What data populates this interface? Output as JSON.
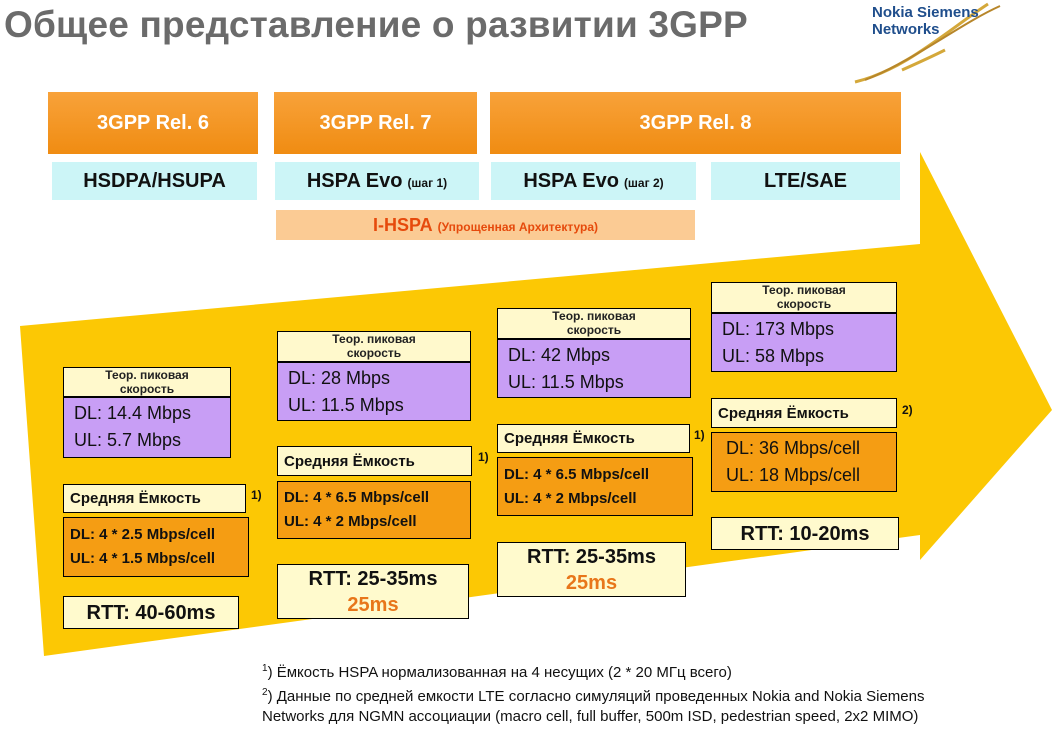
{
  "title": "Общее представление о развитии 3GPP",
  "logo": {
    "line1": "Nokia Siemens",
    "line2": "Networks"
  },
  "colors": {
    "release_orange": "#f08c12",
    "tech_cyan": "#ccf5f7",
    "arrow_yellow": "#fcc804",
    "peak_purple": "#c89ef5",
    "capacity_orange": "#f59d13",
    "rtt_yellow": "#fffacd",
    "accent_red": "#e64a0c"
  },
  "releases": [
    {
      "label": "3GPP Rel. 6"
    },
    {
      "label": "3GPP Rel. 7"
    },
    {
      "label": "3GPP Rel. 8"
    }
  ],
  "technologies": [
    {
      "name": "HSDPA/HSUPA",
      "step": ""
    },
    {
      "name": "HSPA Evo",
      "step": "(шаг 1)"
    },
    {
      "name": "HSPA Evo",
      "step": "(шаг 2)"
    },
    {
      "name": "LTE/SAE",
      "step": ""
    }
  ],
  "ihspa": {
    "name": "I-HSPA",
    "note": "(Упрощенная Архитектура)"
  },
  "columns": [
    {
      "peak_header_1": "Теор. пиковая",
      "peak_header_2": "скорость",
      "peak_dl": "DL: 14.4 Mbps",
      "peak_ul": "UL: 5.7 Mbps",
      "avg_header": "Средняя Ёмкость",
      "avg_note": "1)",
      "avg_dl": "DL: 4 * 2.5 Mbps/cell",
      "avg_ul": "UL: 4 * 1.5 Mbps/cell",
      "rtt": "RTT: 40-60ms",
      "rtt_alt": ""
    },
    {
      "peak_header_1": "Теор. пиковая",
      "peak_header_2": "скорость",
      "peak_dl": "DL: 28 Mbps",
      "peak_ul": "UL: 11.5 Mbps",
      "avg_header": "Средняя Ёмкость",
      "avg_note": "1)",
      "avg_dl": "DL: 4 * 6.5 Mbps/cell",
      "avg_ul": "UL: 4 * 2 Mbps/cell",
      "rtt": "RTT: 25-35ms",
      "rtt_alt": "25ms"
    },
    {
      "peak_header_1": "Теор. пиковая",
      "peak_header_2": "скорость",
      "peak_dl": "DL: 42 Mbps",
      "peak_ul": "UL: 11.5 Mbps",
      "avg_header": "Средняя Ёмкость",
      "avg_note": "1)",
      "avg_dl": "DL: 4 * 6.5 Mbps/cell",
      "avg_ul": "UL: 4 * 2 Mbps/cell",
      "rtt": "RTT: 25-35ms",
      "rtt_alt": "25ms"
    },
    {
      "peak_header_1": "Теор. пиковая",
      "peak_header_2": "скорость",
      "peak_dl": "DL: 173 Mbps",
      "peak_ul": "UL: 58 Mbps",
      "avg_header": "Средняя Ёмкость",
      "avg_note": "2)",
      "avg_dl": "DL: 36 Mbps/cell",
      "avg_ul": "UL: 18 Mbps/cell",
      "rtt": "RTT: 10-20ms",
      "rtt_alt": ""
    }
  ],
  "footnotes": [
    {
      "mark": "1",
      "text": ") Ёмкость HSPA нормализованная на 4 несущих (2 * 20 МГц всего)"
    },
    {
      "mark": "2",
      "text": ") Данные по средней емкости LTE согласно симуляций проведенных Nokia and Nokia Siemens Networks для NGMN ассоциации (macro cell, full buffer, 500m ISD, pedestrian speed, 2x2 MIMO)"
    }
  ]
}
